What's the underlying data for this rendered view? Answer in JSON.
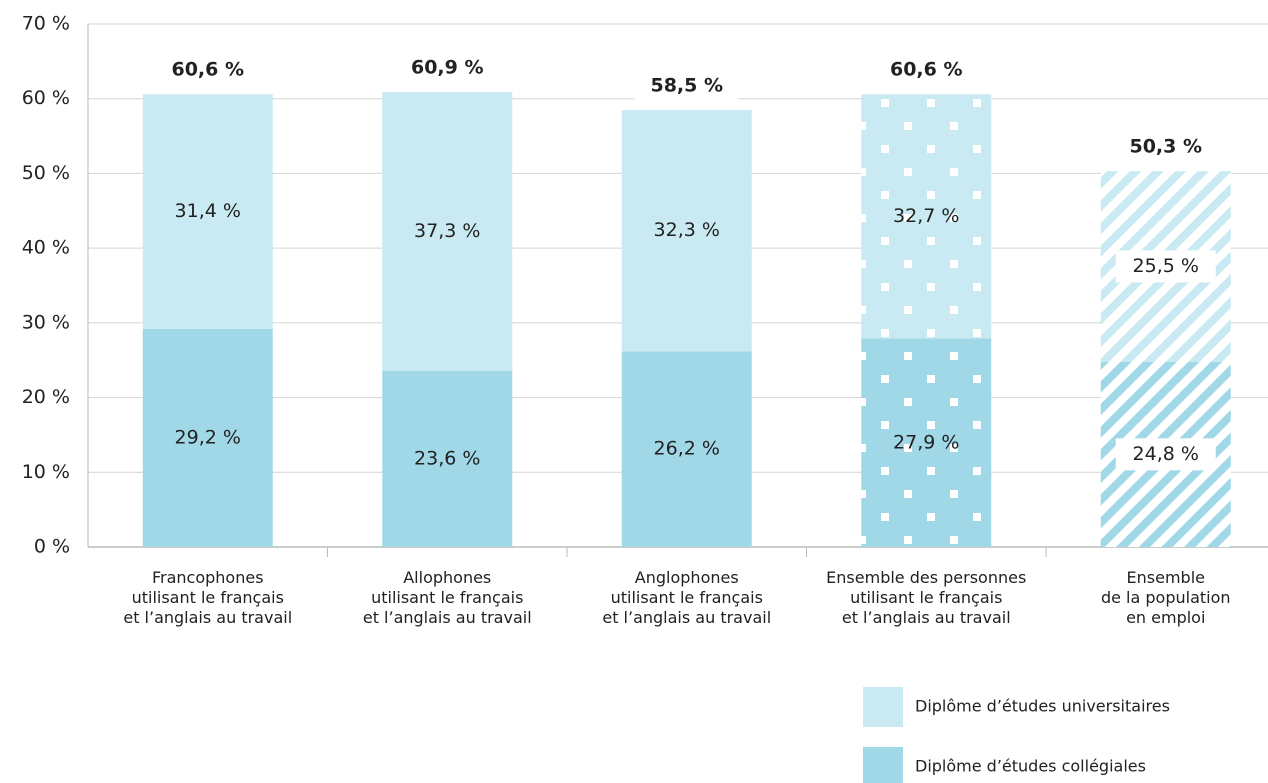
{
  "chart_data": {
    "type": "stacked_bar",
    "categories": [
      "Francophones\nutilisant le français\net l’anglais au travail",
      "Allophones\nutilisant le français\net l’anglais au travail",
      "Anglophones\nutilisant le français\net l’anglais au travail",
      "Ensemble des personnes\nutilisant le français\net l’anglais au travail",
      "Ensemble\nde la population\nen emploi"
    ],
    "series": [
      {
        "name": "Diplôme d’études collégiales",
        "color": "#a0d8e8",
        "values": [
          29.2,
          23.6,
          26.2,
          27.9,
          24.8
        ],
        "value_labels": [
          "29,2 %",
          "23,6 %",
          "26,2 %",
          "27,9 %",
          "24,8 %"
        ]
      },
      {
        "name": "Diplôme d’études universitaires",
        "color": "#c9eaf2",
        "values": [
          31.4,
          37.3,
          32.3,
          32.7,
          25.5
        ],
        "value_labels": [
          "31,4 %",
          "37,3 %",
          "32,3 %",
          "32,7 %",
          "25,5 %"
        ]
      }
    ],
    "totals": [
      60.6,
      60.9,
      58.5,
      60.6,
      50.3
    ],
    "total_labels": [
      "60,6 %",
      "60,9 %",
      "58,5 %",
      "60,6 %",
      "50,3 %"
    ],
    "bar_patterns": [
      "solid",
      "solid",
      "solid",
      "dots",
      "stripes"
    ],
    "ylim": [
      0,
      70
    ],
    "yticks": [
      {
        "value": 0,
        "label": "0 %"
      },
      {
        "value": 10,
        "label": "10 %"
      },
      {
        "value": 20,
        "label": "20 %"
      },
      {
        "value": 30,
        "label": "30 %"
      },
      {
        "value": 40,
        "label": "40 %"
      },
      {
        "value": 50,
        "label": "50 %"
      },
      {
        "value": 60,
        "label": "60 %"
      },
      {
        "value": 70,
        "label": "70 %"
      }
    ],
    "grid": true
  }
}
